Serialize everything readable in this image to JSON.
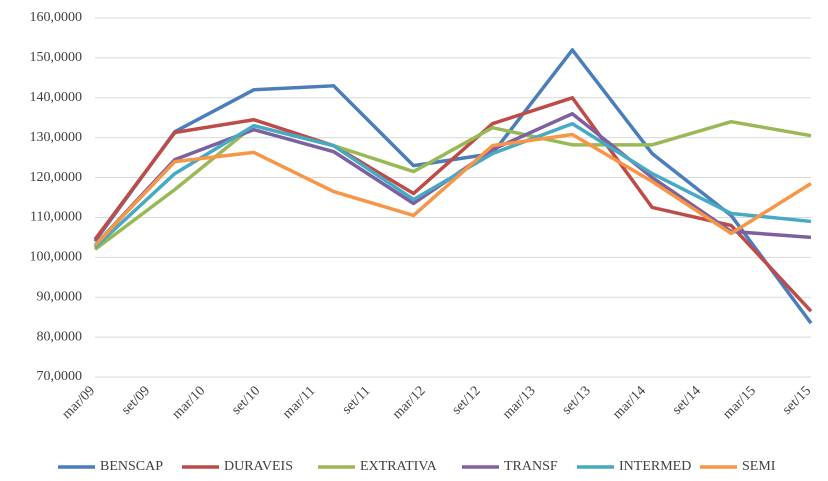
{
  "chart_data": {
    "type": "line",
    "x": [
      0,
      8.7,
      17.3,
      26,
      34.7,
      43.3,
      52,
      60.7,
      69.3,
      78
    ],
    "xlim": [
      0,
      78
    ],
    "xticks": [
      {
        "value": 0,
        "label": "mar/09"
      },
      {
        "value": 6,
        "label": "set/09"
      },
      {
        "value": 12,
        "label": "mar/10"
      },
      {
        "value": 18,
        "label": "set/10"
      },
      {
        "value": 24,
        "label": "mar/11"
      },
      {
        "value": 30,
        "label": "set/11"
      },
      {
        "value": 36,
        "label": "mar/12"
      },
      {
        "value": 42,
        "label": "set/12"
      },
      {
        "value": 48,
        "label": "mar/13"
      },
      {
        "value": 54,
        "label": "set/13"
      },
      {
        "value": 60,
        "label": "mar/14"
      },
      {
        "value": 66,
        "label": "set/14"
      },
      {
        "value": 72,
        "label": "mar/15"
      },
      {
        "value": 78,
        "label": "set/15"
      }
    ],
    "ylim": [
      70,
      160
    ],
    "yticks": [
      {
        "value": 70,
        "label": "70,0000"
      },
      {
        "value": 80,
        "label": "80,0000"
      },
      {
        "value": 90,
        "label": "90,0000"
      },
      {
        "value": 100,
        "label": "100,0000"
      },
      {
        "value": 110,
        "label": "110,0000"
      },
      {
        "value": 120,
        "label": "120,0000"
      },
      {
        "value": 130,
        "label": "130,0000"
      },
      {
        "value": 140,
        "label": "140,0000"
      },
      {
        "value": 150,
        "label": "150,0000"
      },
      {
        "value": 160,
        "label": "160,0000"
      }
    ],
    "grid": true,
    "legend": "bottom",
    "series": [
      {
        "name": "BENSCAP",
        "color": "#4a7ebb",
        "values": [
          104,
          131.5,
          142,
          143,
          123,
          126,
          152,
          126,
          110.5,
          83.5
        ]
      },
      {
        "name": "DURAVEIS",
        "color": "#be4b48",
        "values": [
          104.5,
          131.3,
          134.5,
          128,
          116,
          133.5,
          140,
          112.5,
          108,
          86.5
        ]
      },
      {
        "name": "EXTRATIVA",
        "color": "#98b954",
        "values": [
          102,
          117,
          133,
          128,
          121.5,
          132.5,
          128.2,
          128.2,
          134,
          130.5
        ]
      },
      {
        "name": "TRANSF",
        "color": "#7d60a0",
        "values": [
          103,
          124.5,
          132,
          126.5,
          113.5,
          127,
          136,
          120,
          106.5,
          105
        ]
      },
      {
        "name": "INTERMED",
        "color": "#46aac5",
        "values": [
          102.5,
          121,
          133,
          128,
          114.5,
          126,
          133.5,
          121,
          111,
          109
        ]
      },
      {
        "name": "SEMI",
        "color": "#f79646",
        "values": [
          103,
          124,
          126.3,
          116.5,
          110.5,
          128,
          130.8,
          119,
          106,
          118.5
        ]
      }
    ]
  }
}
